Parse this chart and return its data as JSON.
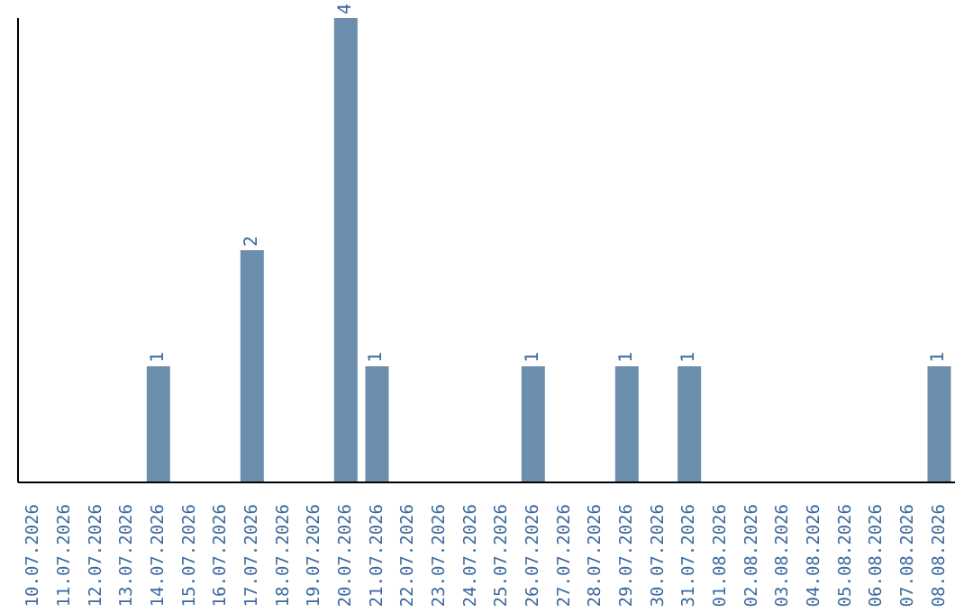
{
  "chart_data": {
    "type": "bar",
    "categories": [
      "10.07.2026",
      "11.07.2026",
      "12.07.2026",
      "13.07.2026",
      "14.07.2026",
      "15.07.2026",
      "16.07.2026",
      "17.07.2026",
      "18.07.2026",
      "19.07.2026",
      "20.07.2026",
      "21.07.2026",
      "22.07.2026",
      "23.07.2026",
      "24.07.2026",
      "25.07.2026",
      "26.07.2026",
      "27.07.2026",
      "28.07.2026",
      "29.07.2026",
      "30.07.2026",
      "31.07.2026",
      "01.08.2026",
      "02.08.2026",
      "03.08.2026",
      "04.08.2026",
      "05.08.2026",
      "06.08.2026",
      "07.08.2026",
      "08.08.2026"
    ],
    "values": [
      0,
      0,
      0,
      0,
      1,
      0,
      0,
      2,
      0,
      0,
      4,
      1,
      0,
      0,
      0,
      0,
      1,
      0,
      0,
      1,
      0,
      1,
      0,
      0,
      0,
      0,
      0,
      0,
      0,
      1
    ],
    "value_labels": [
      null,
      null,
      null,
      null,
      "1",
      null,
      null,
      "2",
      null,
      null,
      "4",
      "1",
      null,
      null,
      null,
      null,
      "1",
      null,
      null,
      "1",
      null,
      "1",
      null,
      null,
      null,
      null,
      null,
      null,
      null,
      "1"
    ],
    "color": "#6c8ead",
    "tick_labels": "x",
    "grid": false,
    "legend": false
  }
}
